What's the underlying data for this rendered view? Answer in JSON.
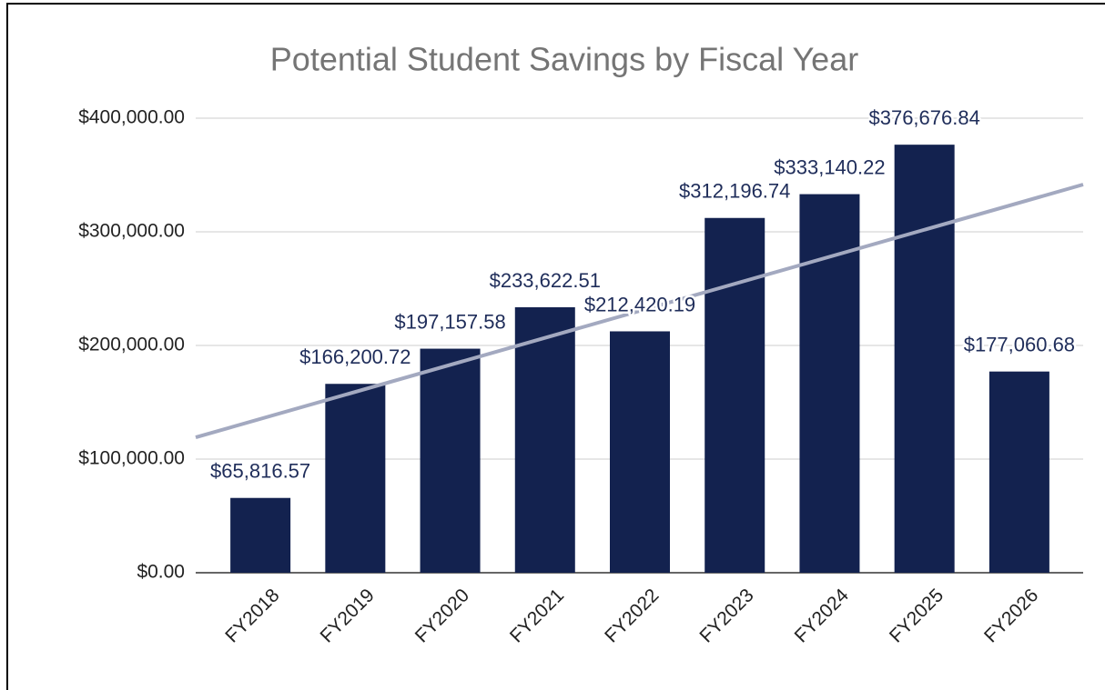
{
  "chart_data": {
    "type": "bar",
    "title": "Potential Student Savings by Fiscal Year",
    "categories": [
      "FY2018",
      "FY2019",
      "FY2020",
      "FY2021",
      "FY2022",
      "FY2023",
      "FY2024",
      "FY2025",
      "FY2026"
    ],
    "values": [
      65816.57,
      166200.72,
      197157.58,
      233622.51,
      212420.19,
      312196.74,
      333140.22,
      376676.84,
      177060.68
    ],
    "value_labels": [
      "$65,816.57",
      "$166,200.72",
      "$197,157.58",
      "$233,622.51",
      "$212,420.19",
      "$312,196.74",
      "$333,140.22",
      "$376,676.84",
      "$177,060.68"
    ],
    "color": "#13224f",
    "ylim": [
      0,
      400000
    ],
    "yticks": [
      {
        "value": 0,
        "label": "$0.00"
      },
      {
        "value": 100000,
        "label": "$100,000.00"
      },
      {
        "value": 200000,
        "label": "$200,000.00"
      },
      {
        "value": 300000,
        "label": "$300,000.00"
      },
      {
        "value": 400000,
        "label": "$400,000.00"
      }
    ],
    "grid": true,
    "trendline": true,
    "trendline_color": "#a3a9c0"
  }
}
